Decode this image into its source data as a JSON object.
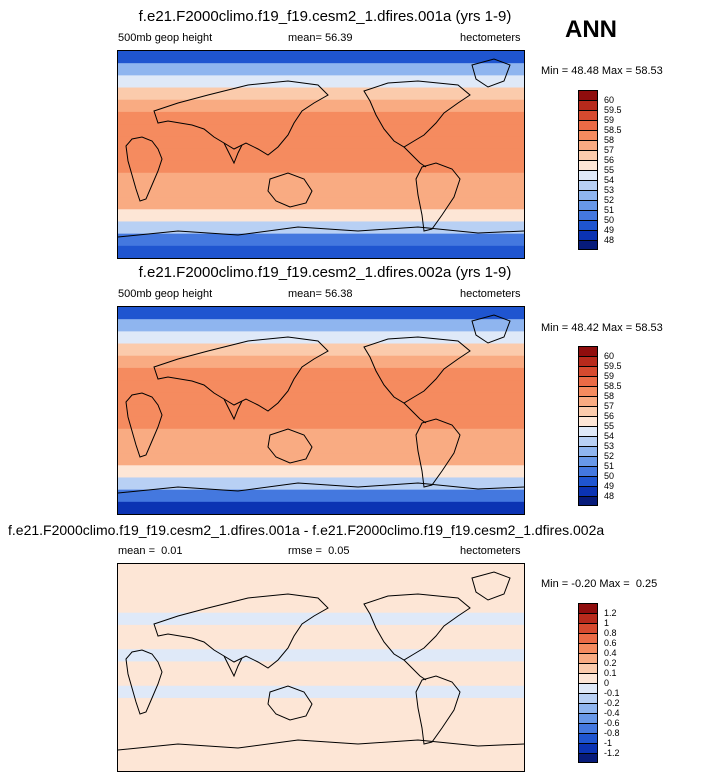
{
  "season": "ANN",
  "chart_data": [
    {
      "type": "heatmap",
      "title": "f.e21.F2000climo.f19_f19.cesm2_1.dfires.001a (yrs 1-9)",
      "variable": "500mb geop height",
      "stat_label": "mean=",
      "stat_value": "56.39",
      "units": "hectometers",
      "min_label": "Min =",
      "min_value": "48.48",
      "max_label": "Max =",
      "max_value": "58.53",
      "levels": [
        "60",
        "59.5",
        "59",
        "58.5",
        "58",
        "57",
        "56",
        "55",
        "54",
        "53",
        "52",
        "51",
        "50",
        "49",
        "48"
      ],
      "colors": [
        "#8f0d0d",
        "#b72a1c",
        "#d64a2f",
        "#eb6b46",
        "#f58b5f",
        "#f9ab82",
        "#fbcbac",
        "#fde6d6",
        "#dfe9f8",
        "#b8d0f4",
        "#8fb5ef",
        "#6898e8",
        "#4478df",
        "#1f55d0",
        "#0b33b3",
        "#071b7a"
      ],
      "row_values": [
        49.2,
        52.0,
        54.5,
        56.2,
        57.4,
        58.0,
        58.2,
        58.3,
        58.2,
        58.1,
        57.9,
        57.6,
        57.0,
        55.6,
        53.4,
        50.5,
        49.0
      ]
    },
    {
      "type": "heatmap",
      "title": "f.e21.F2000climo.f19_f19.cesm2_1.dfires.002a (yrs 1-9)",
      "variable": "500mb geop height",
      "stat_label": "mean=",
      "stat_value": "56.38",
      "units": "hectometers",
      "min_label": "Min =",
      "min_value": "48.42",
      "max_label": "Max =",
      "max_value": "58.53",
      "levels": [
        "60",
        "59.5",
        "59",
        "58.5",
        "58",
        "57",
        "56",
        "55",
        "54",
        "53",
        "52",
        "51",
        "50",
        "49",
        "48"
      ],
      "colors": [
        "#8f0d0d",
        "#b72a1c",
        "#d64a2f",
        "#eb6b46",
        "#f58b5f",
        "#f9ab82",
        "#fbcbac",
        "#fde6d6",
        "#dfe9f8",
        "#b8d0f4",
        "#8fb5ef",
        "#6898e8",
        "#4478df",
        "#1f55d0",
        "#0b33b3",
        "#071b7a"
      ],
      "row_values": [
        49.1,
        52.0,
        54.5,
        56.2,
        57.4,
        58.0,
        58.2,
        58.3,
        58.2,
        58.1,
        57.9,
        57.6,
        57.0,
        55.6,
        53.4,
        50.4,
        48.9
      ]
    },
    {
      "type": "heatmap",
      "title": "f.e21.F2000climo.f19_f19.cesm2_1.dfires.001a - f.e21.F2000climo.f19_f19.cesm2_1.dfires.002a",
      "variable": "mean =",
      "variable_value": "0.01",
      "stat_label": "rmse =",
      "stat_value": "0.05",
      "units": "hectometers",
      "min_label": "Min =",
      "min_value": "-0.20",
      "max_label": "Max =",
      "max_value": "0.25",
      "levels": [
        "1.2",
        "1",
        "0.8",
        "0.6",
        "0.4",
        "0.2",
        "0.1",
        "0",
        "-0.1",
        "-0.2",
        "-0.4",
        "-0.6",
        "-0.8",
        "-1",
        "-1.2"
      ],
      "colors": [
        "#8f0d0d",
        "#b72a1c",
        "#d64a2f",
        "#eb6b46",
        "#f58b5f",
        "#f9ab82",
        "#fbcbac",
        "#fde6d6",
        "#dfe9f8",
        "#b8d0f4",
        "#8fb5ef",
        "#6898e8",
        "#4478df",
        "#1f55d0",
        "#0b33b3",
        "#071b7a"
      ],
      "row_values": [
        0.03,
        0.05,
        0.02,
        0.01,
        -0.02,
        0.02,
        0.01,
        -0.02,
        0.02,
        0.01,
        -0.01,
        0.01,
        0.02,
        0.01,
        0.02,
        0.02,
        0.01
      ]
    }
  ]
}
